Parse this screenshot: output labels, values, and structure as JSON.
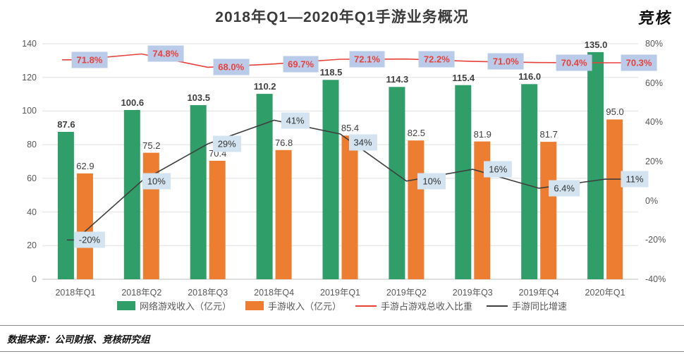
{
  "title": "2018年Q1—2020年Q1手游业务概况",
  "logo": "竞核",
  "footer": "数据来源：公司财报、竞核研究组",
  "colors": {
    "green_bar": "#2f9e69",
    "orange_bar": "#ed7d31",
    "red_line": "#e8413c",
    "black_line": "#3f3f3f",
    "red_label_bg": "#b9cbe8",
    "black_label_bg": "#d3e4f0",
    "axis_text": "#595959",
    "gridline": "#e0e0e0"
  },
  "chart_data": {
    "type": "bar",
    "subtype": "combo-bar-line-dual-axis",
    "title": "2018年Q1—2020年Q1手游业务概况",
    "categories": [
      "2018年Q1",
      "2018年Q2",
      "2018年Q3",
      "2018年Q4",
      "2019年Q1",
      "2019年Q2",
      "2019年Q3",
      "2019年Q4",
      "2020年Q1"
    ],
    "series": [
      {
        "name": "网络游戏收入（亿元）",
        "type": "bar",
        "axis": "left",
        "values": [
          87.6,
          100.6,
          103.5,
          110.2,
          118.5,
          114.3,
          115.4,
          116.0,
          135.0
        ],
        "labels": [
          "87.6",
          "100.6",
          "103.5",
          "110.2",
          "118.5",
          "114.3",
          "115.4",
          "116.0",
          "135.0"
        ]
      },
      {
        "name": "手游收入（亿元）",
        "type": "bar",
        "axis": "left",
        "values": [
          62.9,
          75.2,
          70.4,
          76.8,
          85.4,
          82.5,
          81.9,
          81.7,
          95.0
        ],
        "labels": [
          "62.9",
          "75.2",
          "70.4",
          "76.8",
          "85.4",
          "82.5",
          "81.9",
          "81.7",
          "95.0"
        ]
      },
      {
        "name": "手游占游戏总收入比重",
        "type": "line",
        "axis": "right",
        "values": [
          71.8,
          74.8,
          68.0,
          69.7,
          72.1,
          72.2,
          71.0,
          70.4,
          70.3
        ],
        "labels": [
          "71.8%",
          "74.8%",
          "68.0%",
          "69.7%",
          "72.1%",
          "72.2%",
          "71.0%",
          "70.4%",
          "70.3%"
        ]
      },
      {
        "name": "手游同比增速",
        "type": "line",
        "axis": "right",
        "values": [
          -20,
          10,
          29,
          41,
          34,
          10,
          16,
          6.4,
          11
        ],
        "labels": [
          "-20%",
          "10%",
          "29%",
          "41%",
          "34%",
          "10%",
          "16%",
          "6.4%",
          "11%"
        ]
      }
    ],
    "left_axis": {
      "min": 0,
      "max": 140,
      "step": 20,
      "ticks": [
        "0",
        "20",
        "40",
        "60",
        "80",
        "100",
        "120",
        "140"
      ]
    },
    "right_axis": {
      "min": -40,
      "max": 80,
      "step": 20,
      "ticks": [
        "-40%",
        "-20%",
        "0%",
        "20%",
        "40%",
        "60%",
        "80%"
      ]
    },
    "grid": "horizontal",
    "legend_position": "bottom"
  }
}
